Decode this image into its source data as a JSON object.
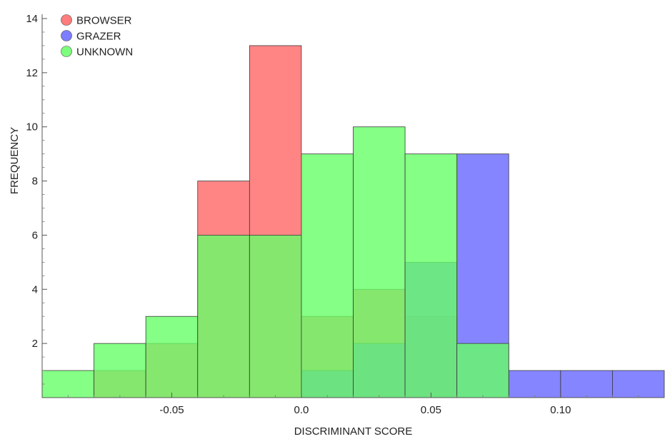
{
  "chart_data": {
    "type": "bar",
    "subtype": "overlapping-histogram",
    "title": "",
    "xlabel": "DISCRIMINANT SCORE",
    "ylabel": "FREQUENCY",
    "xlim": [
      -0.1,
      0.14
    ],
    "ylim": [
      0,
      14
    ],
    "x_ticks": [
      -0.05,
      0.0,
      0.05,
      0.1
    ],
    "x_tick_labels": [
      "-0.05",
      "0.0",
      "0.05",
      "0.10"
    ],
    "y_ticks": [
      2,
      4,
      6,
      8,
      10,
      12,
      14
    ],
    "y_tick_labels": [
      "2",
      "4",
      "6",
      "8",
      "10",
      "12",
      "14"
    ],
    "bin_edges": [
      -0.1,
      -0.08,
      -0.06,
      -0.04,
      -0.02,
      0.0,
      0.02,
      0.04,
      0.06,
      0.08,
      0.1,
      0.12,
      0.14
    ],
    "legend_position": "top-left",
    "grid": false,
    "series": [
      {
        "name": "BROWSER",
        "color": "#ff6666",
        "values": [
          0,
          1,
          2,
          8,
          13,
          3,
          4,
          3,
          0,
          0,
          0,
          0
        ]
      },
      {
        "name": "GRAZER",
        "color": "#6666ff",
        "values": [
          0,
          0,
          0,
          0,
          0,
          1,
          2,
          5,
          9,
          1,
          1,
          1
        ]
      },
      {
        "name": "UNKNOWN",
        "color": "#66ff66",
        "values": [
          1,
          2,
          3,
          6,
          6,
          9,
          10,
          9,
          2,
          0,
          0,
          0
        ]
      }
    ]
  }
}
